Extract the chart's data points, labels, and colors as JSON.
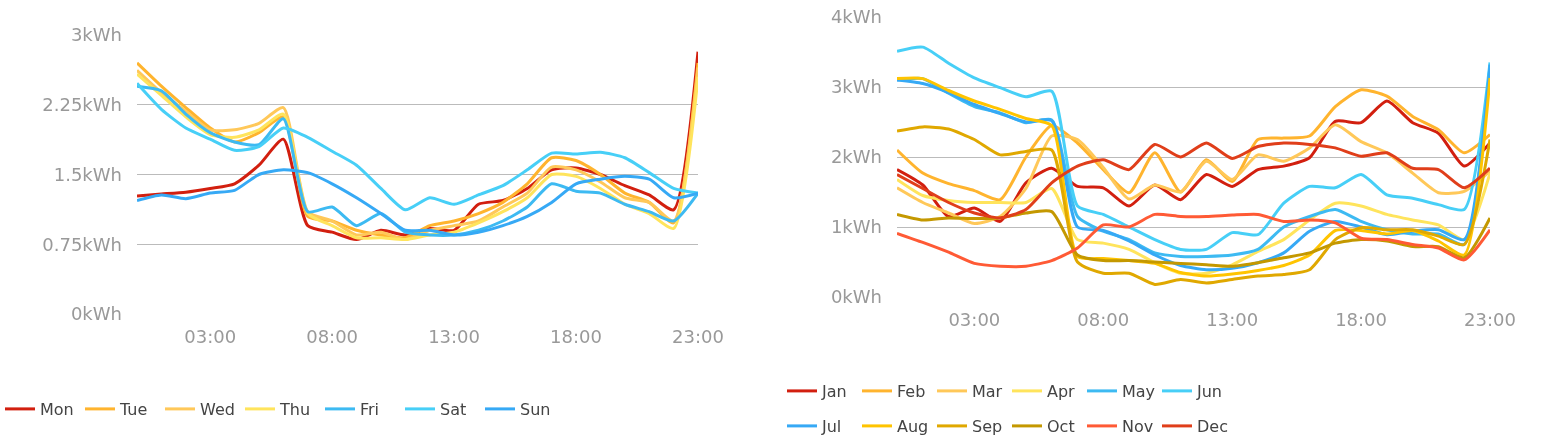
{
  "chart_data": [
    {
      "type": "line",
      "x": [
        0,
        1,
        2,
        3,
        4,
        5,
        6,
        7,
        8,
        9,
        10,
        11,
        12,
        13,
        14,
        15,
        16,
        17,
        18,
        19,
        20,
        21,
        22,
        23
      ],
      "xlim": [
        0,
        23
      ],
      "xticks": [
        {
          "value": 3,
          "label": "03:00"
        },
        {
          "value": 8,
          "label": "08:00"
        },
        {
          "value": 13,
          "label": "13:00"
        },
        {
          "value": 18,
          "label": "18:00"
        },
        {
          "value": 23,
          "label": "23:00"
        }
      ],
      "ylim": [
        0,
        3
      ],
      "yticks": [
        {
          "value": 0,
          "label": "0kWh"
        },
        {
          "value": 0.75,
          "label": "0.75kWh"
        },
        {
          "value": 1.5,
          "label": "1.5kWh"
        },
        {
          "value": 2.25,
          "label": "2.25kWh"
        },
        {
          "value": 3,
          "label": "3kWh"
        }
      ],
      "grid": "y",
      "legend": "bottom",
      "marker": "none",
      "line_style": "solid",
      "series": [
        {
          "name": "Mon",
          "color": "#d21f0f",
          "values": [
            1.27,
            1.29,
            1.31,
            1.35,
            1.4,
            1.6,
            1.88,
            0.95,
            0.88,
            0.8,
            0.9,
            0.85,
            0.92,
            0.9,
            1.18,
            1.22,
            1.35,
            1.55,
            1.57,
            1.5,
            1.38,
            1.28,
            1.12,
            2.82
          ]
        },
        {
          "name": "Tue",
          "color": "#ffb42e",
          "values": [
            2.7,
            2.45,
            2.22,
            2.0,
            1.85,
            1.95,
            2.12,
            1.05,
            1.0,
            0.9,
            0.85,
            0.82,
            0.95,
            1.0,
            1.08,
            1.2,
            1.4,
            1.68,
            1.65,
            1.5,
            1.3,
            1.2,
            0.98,
            2.7
          ]
        },
        {
          "name": "Wed",
          "color": "#ffc859",
          "values": [
            2.62,
            2.38,
            2.18,
            1.98,
            1.98,
            2.05,
            2.22,
            1.1,
            1.0,
            0.85,
            0.88,
            0.8,
            0.9,
            0.95,
            1.0,
            1.15,
            1.3,
            1.58,
            1.55,
            1.42,
            1.25,
            1.2,
            1.0,
            2.65
          ]
        },
        {
          "name": "Thu",
          "color": "#ffe45c",
          "values": [
            2.58,
            2.35,
            2.12,
            1.93,
            1.9,
            1.98,
            2.15,
            1.08,
            0.95,
            0.82,
            0.82,
            0.8,
            0.85,
            0.88,
            0.98,
            1.1,
            1.25,
            1.5,
            1.48,
            1.35,
            1.18,
            1.08,
            0.92,
            2.55
          ]
        },
        {
          "name": "Fri",
          "color": "#3dbaf2",
          "values": [
            2.45,
            2.4,
            2.15,
            1.95,
            1.85,
            1.82,
            2.1,
            1.1,
            1.15,
            0.95,
            1.08,
            0.88,
            0.85,
            0.85,
            0.9,
            1.0,
            1.15,
            1.4,
            1.32,
            1.3,
            1.18,
            1.1,
            1.0,
            1.3
          ]
        },
        {
          "name": "Sat",
          "color": "#47cff7",
          "values": [
            2.48,
            2.2,
            2.0,
            1.88,
            1.76,
            1.8,
            2.0,
            1.9,
            1.75,
            1.6,
            1.35,
            1.12,
            1.25,
            1.18,
            1.28,
            1.38,
            1.55,
            1.73,
            1.72,
            1.74,
            1.68,
            1.52,
            1.35,
            1.3
          ]
        },
        {
          "name": "Sun",
          "color": "#36a9f5",
          "values": [
            1.22,
            1.28,
            1.24,
            1.3,
            1.33,
            1.5,
            1.55,
            1.52,
            1.4,
            1.25,
            1.08,
            0.9,
            0.9,
            0.85,
            0.88,
            0.95,
            1.05,
            1.2,
            1.4,
            1.45,
            1.48,
            1.45,
            1.25,
            1.3
          ]
        }
      ]
    },
    {
      "type": "line",
      "x": [
        0,
        1,
        2,
        3,
        4,
        5,
        6,
        7,
        8,
        9,
        10,
        11,
        12,
        13,
        14,
        15,
        16,
        17,
        18,
        19,
        20,
        21,
        22,
        23
      ],
      "xlim": [
        0,
        23
      ],
      "xticks": [
        {
          "value": 3,
          "label": "03:00"
        },
        {
          "value": 8,
          "label": "08:00"
        },
        {
          "value": 13,
          "label": "13:00"
        },
        {
          "value": 18,
          "label": "18:00"
        },
        {
          "value": 23,
          "label": "23:00"
        }
      ],
      "ylim": [
        0,
        4
      ],
      "yticks": [
        {
          "value": 0,
          "label": "0kWh"
        },
        {
          "value": 1,
          "label": "1kWh"
        },
        {
          "value": 2,
          "label": "2kWh"
        },
        {
          "value": 3,
          "label": "3kWh"
        },
        {
          "value": 4,
          "label": "4kWh"
        }
      ],
      "grid": "y",
      "legend": "bottom",
      "marker": "none",
      "line_style": "solid",
      "series": [
        {
          "name": "Jan",
          "color": "#d21f0f",
          "values": [
            1.82,
            1.6,
            1.15,
            1.27,
            1.08,
            1.63,
            1.84,
            1.58,
            1.56,
            1.3,
            1.6,
            1.39,
            1.75,
            1.58,
            1.82,
            1.87,
            1.99,
            2.51,
            2.49,
            2.8,
            2.49,
            2.34,
            1.87,
            2.2
          ]
        },
        {
          "name": "Feb",
          "color": "#ffb42e",
          "values": [
            2.1,
            1.77,
            1.62,
            1.52,
            1.39,
            2.0,
            2.45,
            2.2,
            1.82,
            1.49,
            2.06,
            1.5,
            1.96,
            1.65,
            2.25,
            2.27,
            2.3,
            2.72,
            2.96,
            2.87,
            2.58,
            2.39,
            2.06,
            2.32
          ]
        },
        {
          "name": "Mar",
          "color": "#ffc859",
          "values": [
            1.56,
            1.35,
            1.2,
            1.05,
            1.15,
            1.55,
            2.3,
            2.25,
            1.85,
            1.4,
            1.6,
            1.5,
            1.94,
            1.68,
            2.03,
            1.94,
            2.13,
            2.46,
            2.22,
            2.06,
            1.77,
            1.49,
            1.51,
            1.8
          ]
        },
        {
          "name": "Apr",
          "color": "#ffe45c",
          "values": [
            1.68,
            1.45,
            1.38,
            1.35,
            1.35,
            1.35,
            1.55,
            0.82,
            0.77,
            0.68,
            0.49,
            0.34,
            0.34,
            0.46,
            0.65,
            0.82,
            1.1,
            1.34,
            1.3,
            1.18,
            1.1,
            1.03,
            0.82,
            1.77
          ]
        },
        {
          "name": "May",
          "color": "#3dbaf2",
          "values": [
            3.1,
            3.12,
            2.91,
            2.72,
            2.63,
            2.49,
            2.53,
            1.15,
            0.94,
            0.82,
            0.63,
            0.58,
            0.58,
            0.6,
            0.68,
            1.0,
            1.15,
            1.25,
            1.08,
            0.96,
            0.9,
            0.9,
            0.75,
            3.3
          ]
        },
        {
          "name": "Jun",
          "color": "#47cff7",
          "values": [
            3.51,
            3.57,
            3.34,
            3.13,
            2.99,
            2.86,
            2.94,
            1.3,
            1.18,
            1.0,
            0.82,
            0.68,
            0.68,
            0.92,
            0.89,
            1.34,
            1.58,
            1.56,
            1.75,
            1.46,
            1.41,
            1.32,
            1.25,
            3.35
          ]
        },
        {
          "name": "Jul",
          "color": "#36a9f5",
          "values": [
            3.1,
            3.05,
            2.92,
            2.75,
            2.62,
            2.5,
            2.52,
            1.0,
            0.95,
            0.8,
            0.6,
            0.45,
            0.39,
            0.41,
            0.49,
            0.63,
            0.94,
            1.08,
            1.0,
            0.89,
            0.94,
            0.96,
            0.82,
            3.32
          ]
        },
        {
          "name": "Aug",
          "color": "#ffc400",
          "values": [
            3.12,
            3.12,
            2.95,
            2.8,
            2.68,
            2.55,
            2.45,
            0.58,
            0.55,
            0.52,
            0.48,
            0.35,
            0.3,
            0.33,
            0.38,
            0.45,
            0.6,
            0.95,
            0.95,
            0.9,
            0.95,
            0.8,
            0.6,
            3.13
          ]
        },
        {
          "name": "Sep",
          "color": "#e0a800",
          "values": [
            2.37,
            2.43,
            2.4,
            2.25,
            2.03,
            2.08,
            2.1,
            0.5,
            0.34,
            0.34,
            0.18,
            0.25,
            0.2,
            0.25,
            0.3,
            0.32,
            0.39,
            0.82,
            0.99,
            0.96,
            0.96,
            0.87,
            0.75,
            2.25
          ]
        },
        {
          "name": "Oct",
          "color": "#c49800",
          "values": [
            1.18,
            1.1,
            1.13,
            1.12,
            1.13,
            1.2,
            1.22,
            0.6,
            0.52,
            0.52,
            0.5,
            0.48,
            0.46,
            0.44,
            0.49,
            0.56,
            0.63,
            0.77,
            0.82,
            0.8,
            0.72,
            0.72,
            0.56,
            1.13
          ]
        },
        {
          "name": "Nov",
          "color": "#ff5a35",
          "values": [
            0.91,
            0.78,
            0.64,
            0.48,
            0.44,
            0.44,
            0.52,
            0.7,
            1.03,
            1.0,
            1.18,
            1.15,
            1.15,
            1.17,
            1.18,
            1.08,
            1.1,
            1.06,
            0.84,
            0.82,
            0.75,
            0.7,
            0.53,
            0.96
          ]
        },
        {
          "name": "Dec",
          "color": "#e03e1a",
          "values": [
            1.75,
            1.55,
            1.35,
            1.2,
            1.13,
            1.25,
            1.63,
            1.87,
            1.96,
            1.82,
            2.18,
            2.0,
            2.2,
            1.98,
            2.15,
            2.2,
            2.18,
            2.13,
            2.01,
            2.06,
            1.84,
            1.82,
            1.56,
            1.84
          ]
        }
      ]
    }
  ]
}
